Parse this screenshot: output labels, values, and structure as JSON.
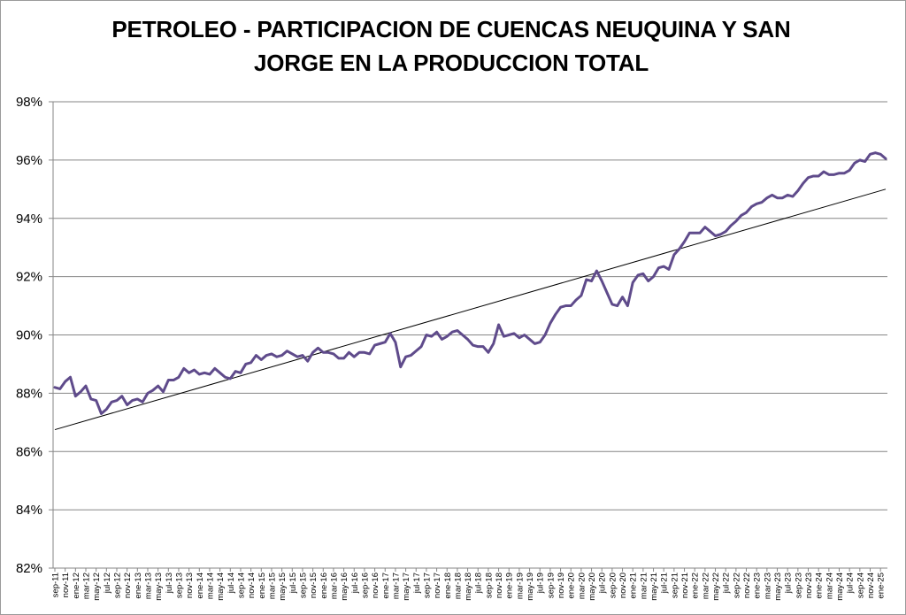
{
  "chart_data": {
    "type": "line",
    "title": "PETROLEO - PARTICIPACION DE CUENCAS NEUQUINA Y SAN JORGE EN LA PRODUCCION TOTAL",
    "xlabel": "",
    "ylabel": "",
    "ylim": [
      0.82,
      0.98
    ],
    "y_ticks": [
      "82%",
      "84%",
      "86%",
      "88%",
      "90%",
      "92%",
      "94%",
      "96%",
      "98%"
    ],
    "grid": true,
    "legend": "none",
    "x_tick_labels": [
      "sep-11",
      "nov-11",
      "ene-12",
      "mar-12",
      "may-12",
      "jul-12",
      "sep-12",
      "nov-12",
      "ene-13",
      "mar-13",
      "may-13",
      "jul-13",
      "sep-13",
      "nov-13",
      "ene-14",
      "mar-14",
      "may-14",
      "jul-14",
      "sep-14",
      "nov-14",
      "ene-15",
      "mar-15",
      "may-15",
      "jul-15",
      "sep-15",
      "nov-15",
      "ene-16",
      "mar-16",
      "may-16",
      "jul-16",
      "sep-16",
      "nov-16",
      "ene-17",
      "mar-17",
      "may-17",
      "jul-17",
      "sep-17",
      "nov-17",
      "ene-18",
      "mar-18",
      "may-18",
      "jul-18",
      "sep-18",
      "nov-18",
      "ene-19",
      "mar-19",
      "may-19",
      "jul-19",
      "sep-19",
      "nov-19",
      "ene-20",
      "mar-20",
      "may-20",
      "jul-20",
      "sep-20",
      "nov-20",
      "ene-21",
      "mar-21",
      "may-21",
      "jul-21",
      "sep-21",
      "nov-21",
      "ene-22",
      "mar-22",
      "may-22",
      "jul-22",
      "sep-22",
      "nov-22",
      "ene-23",
      "mar-23",
      "may-23",
      "jul-23",
      "sep-23",
      "nov-23",
      "ene-24",
      "mar-24",
      "may-24",
      "jul-24",
      "sep-24",
      "nov-24",
      "ene-25"
    ],
    "series": [
      {
        "color": "#5f4b8b",
        "values": [
          88.2,
          88.15,
          88.4,
          88.55,
          87.9,
          88.05,
          88.25,
          87.8,
          87.75,
          87.3,
          87.45,
          87.7,
          87.75,
          87.9,
          87.6,
          87.75,
          87.8,
          87.7,
          88.0,
          88.1,
          88.25,
          88.05,
          88.45,
          88.45,
          88.55,
          88.85,
          88.7,
          88.8,
          88.65,
          88.7,
          88.65,
          88.85,
          88.7,
          88.55,
          88.5,
          88.75,
          88.7,
          89.0,
          89.05,
          89.3,
          89.15,
          89.3,
          89.35,
          89.25,
          89.3,
          89.45,
          89.35,
          89.25,
          89.3,
          89.1,
          89.4,
          89.55,
          89.4,
          89.4,
          89.35,
          89.2,
          89.2,
          89.4,
          89.25,
          89.4,
          89.4,
          89.35,
          89.65,
          89.7,
          89.75,
          90.05,
          89.75,
          88.9,
          89.25,
          89.3,
          89.45,
          89.6,
          90.0,
          89.95,
          90.1,
          89.85,
          89.95,
          90.1,
          90.15,
          90.0,
          89.85,
          89.65,
          89.6,
          89.6,
          89.4,
          89.7,
          90.35,
          89.95,
          90.0,
          90.05,
          89.9,
          90.0,
          89.85,
          89.7,
          89.75,
          90.0,
          90.4,
          90.7,
          90.95,
          91.0,
          91.0,
          91.2,
          91.35,
          91.9,
          91.85,
          92.2,
          91.85,
          91.45,
          91.05,
          91.0,
          91.3,
          91.0,
          91.8,
          92.05,
          92.1,
          91.85,
          92.0,
          92.3,
          92.35,
          92.25,
          92.75,
          92.95,
          93.2,
          93.5,
          93.5,
          93.5,
          93.7,
          93.55,
          93.4,
          93.45,
          93.55,
          93.75,
          93.9,
          94.1,
          94.2,
          94.4,
          94.5,
          94.55,
          94.7,
          94.8,
          94.7,
          94.7,
          94.8,
          94.75,
          94.95,
          95.2,
          95.4,
          95.45,
          95.45,
          95.6,
          95.5,
          95.5,
          95.55,
          95.55,
          95.65,
          95.9,
          96.0,
          95.95,
          96.2,
          96.25,
          96.2,
          96.05
        ]
      },
      {
        "type": "trendline",
        "color": "#000000",
        "start": 86.75,
        "end": 95.0
      }
    ]
  }
}
